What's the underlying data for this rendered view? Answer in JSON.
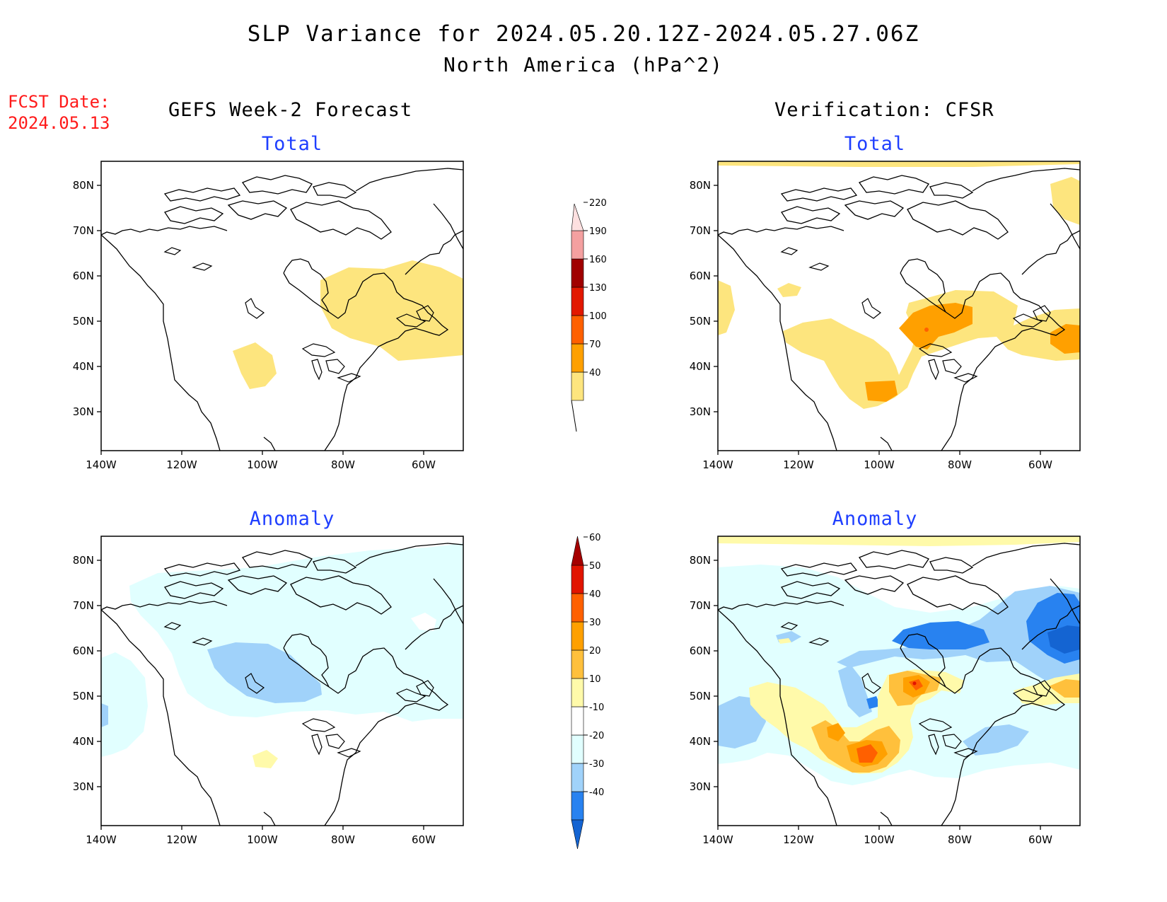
{
  "header": {
    "title": "SLP Variance for 2024.05.20.12Z-2024.05.27.06Z",
    "subtitle": "North America (hPa^2)"
  },
  "fcst_date": {
    "label": "FCST Date:",
    "value": "2024.05.13"
  },
  "columns": {
    "left": "GEFS Week-2 Forecast",
    "right": "Verification: CFSR"
  },
  "panels": [
    {
      "id": "forecast-total",
      "title": "Total"
    },
    {
      "id": "verification-total",
      "title": "Total"
    },
    {
      "id": "forecast-anomaly",
      "title": "Anomaly"
    },
    {
      "id": "verification-anomaly",
      "title": "Anomaly"
    }
  ],
  "axes": {
    "lat_labels": [
      "80N",
      "70N",
      "60N",
      "50N",
      "40N",
      "30N"
    ],
    "lon_labels": [
      "140W",
      "120W",
      "100W",
      "80W",
      "60W"
    ]
  },
  "colorbars": {
    "total": {
      "levels": [
        "40",
        "70",
        "100",
        "130",
        "160",
        "190",
        "220"
      ],
      "colors": [
        "#fde57e",
        "#ffa000",
        "#ff6000",
        "#e21800",
        "#a00000",
        "#f4a0a0",
        "#fde0e0"
      ]
    },
    "anomaly": {
      "levels": [
        "-40",
        "-30",
        "-20",
        "-10",
        "10",
        "20",
        "30",
        "40",
        "50",
        "60"
      ],
      "colors": [
        "#1464d2",
        "#2882f0",
        "#a0d2fa",
        "#e1ffff",
        "#ffffff",
        "#fffaaa",
        "#ffc03c",
        "#ffa000",
        "#ff6000",
        "#e11400",
        "#a50000"
      ]
    }
  }
}
